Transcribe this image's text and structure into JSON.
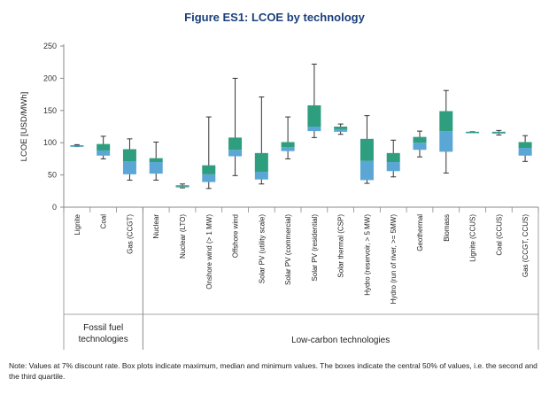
{
  "figure_title": "Figure ES1: LCOE by technology",
  "note": "Note: Values at 7% discount rate. Box plots indicate maximum, median and minimum values. The boxes indicate the central 50% of values, i.e. the second and the third quartile.",
  "colors": {
    "upper_box": "#2e9e7f",
    "lower_box": "#5aa7d6",
    "whisker": "#333333",
    "axis": "#888888",
    "title": "#1b3f7a"
  },
  "chart_data": {
    "type": "boxplot",
    "title": "Figure ES1: LCOE by technology",
    "ylabel": "LCOE [USD/MWh]",
    "ylim": [
      0,
      250
    ],
    "yticks": [
      0,
      50,
      100,
      150,
      200,
      250
    ],
    "grid": false,
    "groups": [
      {
        "name": "Fossil fuel technologies",
        "lines": [
          "Fossil fuel",
          "technologies"
        ],
        "start": 0,
        "end": 2
      },
      {
        "name": "Low-carbon technologies",
        "lines": [
          "Low-carbon technologies"
        ],
        "start": 3,
        "end": 17
      }
    ],
    "categories": [
      {
        "name": "Lignite",
        "min": 94,
        "q1": 94,
        "median": 95,
        "q3": 96,
        "max": 97
      },
      {
        "name": "Coal",
        "min": 75,
        "q1": 80,
        "median": 88,
        "q3": 98,
        "max": 110
      },
      {
        "name": "Gas (CCGT)",
        "min": 42,
        "q1": 51,
        "median": 71,
        "q3": 90,
        "max": 106
      },
      {
        "name": "Nuclear",
        "min": 42,
        "q1": 52,
        "median": 70,
        "q3": 76,
        "max": 101
      },
      {
        "name": "Nuclear (LTO)",
        "min": 30,
        "q1": 31,
        "median": 32,
        "q3": 34,
        "max": 36
      },
      {
        "name": "Onshore wind (> 1 MW)",
        "min": 29,
        "q1": 39,
        "median": 51,
        "q3": 65,
        "max": 140
      },
      {
        "name": "Offshore wind",
        "min": 49,
        "q1": 79,
        "median": 89,
        "q3": 108,
        "max": 200
      },
      {
        "name": "Solar PV (utility scale)",
        "min": 36,
        "q1": 43,
        "median": 55,
        "q3": 84,
        "max": 171
      },
      {
        "name": "Solar PV (commercial)",
        "min": 75,
        "q1": 87,
        "median": 93,
        "q3": 101,
        "max": 140
      },
      {
        "name": "Solar PV (residential)",
        "min": 108,
        "q1": 118,
        "median": 125,
        "q3": 158,
        "max": 222
      },
      {
        "name": "Solar thermal (CSP)",
        "min": 113,
        "q1": 117,
        "median": 121,
        "q3": 125,
        "max": 129
      },
      {
        "name": "Hydro (reservoir, > 5 MW)",
        "min": 37,
        "q1": 42,
        "median": 72,
        "q3": 106,
        "max": 142
      },
      {
        "name": "Hydro (run of river, >= 5MW)",
        "min": 47,
        "q1": 56,
        "median": 70,
        "q3": 84,
        "max": 104
      },
      {
        "name": "Geothermal",
        "min": 78,
        "q1": 89,
        "median": 100,
        "q3": 109,
        "max": 118
      },
      {
        "name": "Biomass",
        "min": 53,
        "q1": 86,
        "median": 118,
        "q3": 149,
        "max": 181
      },
      {
        "name": "Lignite (CCUS)",
        "min": 116,
        "q1": 116,
        "median": 116,
        "q3": 117,
        "max": 117
      },
      {
        "name": "Coal (CCUS)",
        "min": 112,
        "q1": 114,
        "median": 116,
        "q3": 117,
        "max": 119
      },
      {
        "name": "Gas (CCGT, CCUS)",
        "min": 71,
        "q1": 80,
        "median": 92,
        "q3": 101,
        "max": 111
      }
    ]
  }
}
